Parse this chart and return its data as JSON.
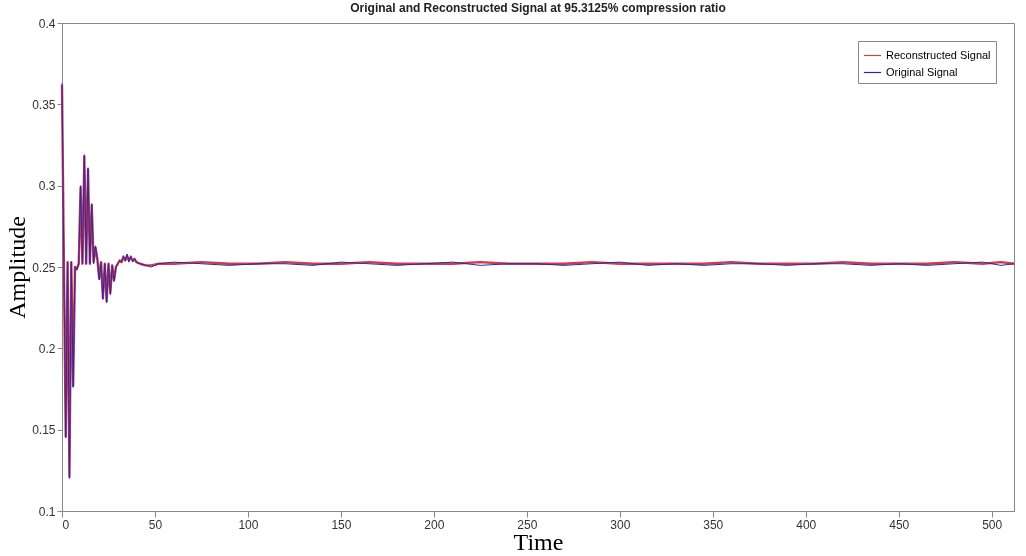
{
  "chart_data": {
    "type": "line",
    "title": "Original and Reconstructed Signal at 95.3125% compression ratio",
    "xlabel": "Time",
    "ylabel": "Amplitude",
    "xlim": [
      0,
      512
    ],
    "xticks": [
      0,
      50,
      100,
      150,
      200,
      250,
      300,
      350,
      400,
      450,
      500
    ],
    "ylim": [
      0.1,
      0.4
    ],
    "yticks": [
      0.1,
      0.15,
      0.2,
      0.25,
      0.3,
      0.35,
      0.4
    ],
    "grid": false,
    "legend": "top right",
    "marker": "none",
    "line_style": "solid",
    "x": [
      0,
      1,
      2,
      3,
      4,
      5,
      6,
      7,
      8,
      9,
      10,
      11,
      12,
      13,
      14,
      15,
      16,
      17,
      18,
      19,
      20,
      21,
      22,
      23,
      24,
      25,
      26,
      27,
      28,
      29,
      30,
      31,
      32,
      33,
      34,
      35,
      36,
      37,
      38,
      39,
      40,
      42,
      45,
      48,
      52,
      60,
      75,
      90,
      105,
      120,
      135,
      150,
      165,
      180,
      195,
      210,
      225,
      240,
      255,
      270,
      285,
      300,
      315,
      330,
      345,
      360,
      375,
      390,
      405,
      420,
      435,
      450,
      465,
      480,
      495,
      505,
      512
    ],
    "series": [
      {
        "name": "Reconstructed Signal",
        "color": "#d03a4a",
        "values": [
          0.362,
          0.253,
          0.146,
          0.253,
          0.121,
          0.253,
          0.177,
          0.25,
          0.249,
          0.252,
          0.299,
          0.252,
          0.318,
          0.252,
          0.31,
          0.252,
          0.288,
          0.253,
          0.262,
          0.255,
          0.243,
          0.253,
          0.231,
          0.252,
          0.229,
          0.252,
          0.234,
          0.251,
          0.242,
          0.25,
          0.252,
          0.254,
          0.253,
          0.256,
          0.254,
          0.257,
          0.254,
          0.256,
          0.254,
          0.255,
          0.253,
          0.252,
          0.251,
          0.251,
          0.252,
          0.252,
          0.253,
          0.252,
          0.252,
          0.253,
          0.252,
          0.252,
          0.253,
          0.252,
          0.252,
          0.252,
          0.253,
          0.252,
          0.252,
          0.252,
          0.253,
          0.252,
          0.252,
          0.252,
          0.252,
          0.253,
          0.252,
          0.252,
          0.252,
          0.253,
          0.252,
          0.252,
          0.252,
          0.253,
          0.252,
          0.253,
          0.252
        ]
      },
      {
        "name": "Original Signal",
        "color": "#2a2aa8",
        "values": [
          0.363,
          0.253,
          0.145,
          0.253,
          0.12,
          0.253,
          0.176,
          0.25,
          0.248,
          0.252,
          0.3,
          0.252,
          0.319,
          0.252,
          0.311,
          0.252,
          0.289,
          0.252,
          0.263,
          0.255,
          0.242,
          0.253,
          0.23,
          0.252,
          0.228,
          0.252,
          0.233,
          0.251,
          0.241,
          0.25,
          0.252,
          0.254,
          0.253,
          0.257,
          0.254,
          0.258,
          0.253,
          0.257,
          0.253,
          0.255,
          0.253,
          0.252,
          0.251,
          0.25,
          0.252,
          0.253,
          0.252,
          0.251,
          0.252,
          0.252,
          0.251,
          0.253,
          0.252,
          0.251,
          0.252,
          0.253,
          0.251,
          0.252,
          0.252,
          0.251,
          0.252,
          0.253,
          0.251,
          0.252,
          0.251,
          0.252,
          0.252,
          0.251,
          0.252,
          0.252,
          0.251,
          0.252,
          0.251,
          0.252,
          0.253,
          0.251,
          0.252
        ]
      }
    ]
  }
}
